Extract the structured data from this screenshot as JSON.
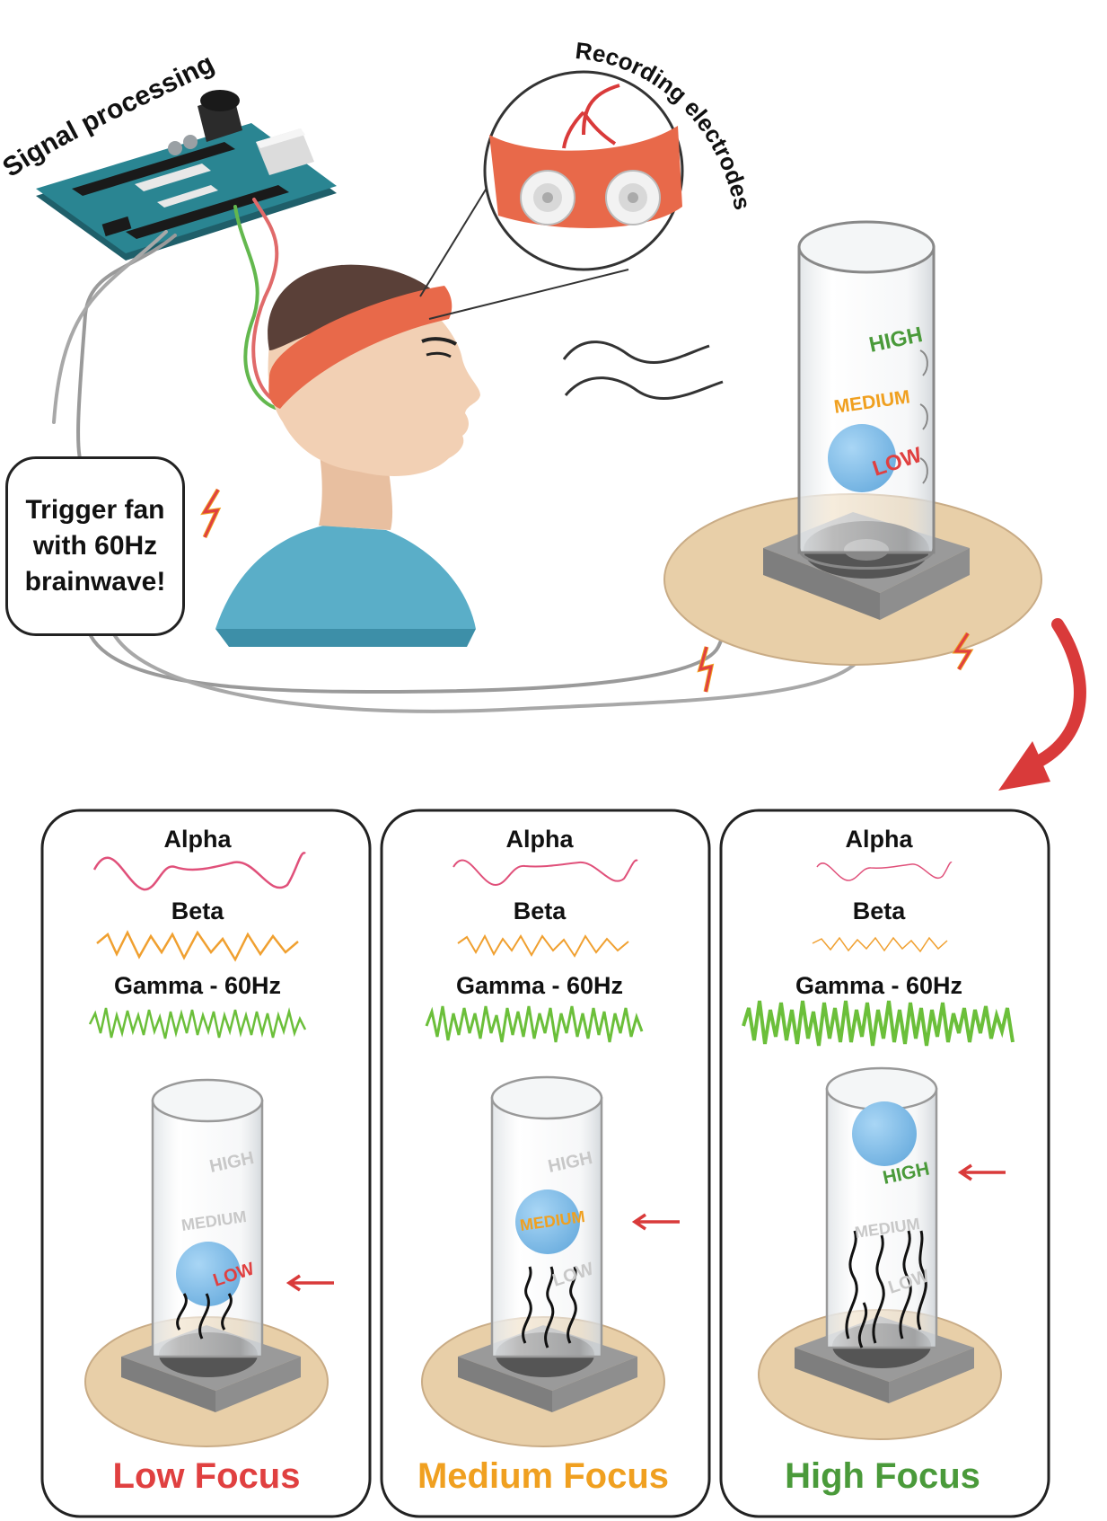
{
  "top": {
    "signal_processing": "Signal processing",
    "recording_electrodes": "Recording electrodes",
    "trigger_lines": [
      "Trigger fan",
      "with 60Hz",
      "brainwave!"
    ],
    "tube_levels": {
      "high": "HIGH",
      "medium": "MEDIUM",
      "low": "LOW"
    }
  },
  "panels": [
    {
      "alpha": "Alpha",
      "beta": "Beta",
      "gamma": "Gamma - 60Hz",
      "levels": {
        "high": "HIGH",
        "medium": "MEDIUM",
        "low": "LOW"
      },
      "title": "Low Focus"
    },
    {
      "alpha": "Alpha",
      "beta": "Beta",
      "gamma": "Gamma - 60Hz",
      "levels": {
        "high": "HIGH",
        "medium": "MEDIUM",
        "low": "LOW"
      },
      "title": "Medium Focus"
    },
    {
      "alpha": "Alpha",
      "beta": "Beta",
      "gamma": "Gamma - 60Hz",
      "levels": {
        "high": "HIGH",
        "medium": "MEDIUM",
        "low": "LOW"
      },
      "title": "High Focus"
    }
  ],
  "colors": {
    "alpha": "#e0507a",
    "beta": "#f0a030",
    "gamma": "#6bbf3a",
    "low": "#e04040",
    "medium": "#f0a020",
    "high": "#4a9a3a",
    "headband": "#e8694a",
    "ball": "#8cc4ec",
    "shirt": "#5aaec8",
    "skin": "#f0cdb0",
    "base": "#e8cfa8",
    "arduino": "#2a7f8a"
  }
}
